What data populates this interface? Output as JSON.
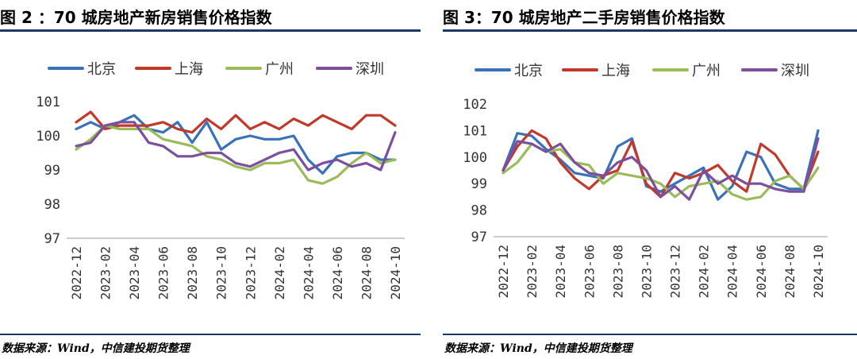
{
  "figures": [
    {
      "id": "left",
      "title": "图 2 ：70 城房地产新房销售价格指数",
      "source": "数据来源：Wind，中信建投期货整理"
    },
    {
      "id": "right",
      "title": "图 3：70 城房地产二手房销售价格指数",
      "source": "数据来源：Wind，中信建投期货整理"
    }
  ],
  "chart_data": [
    {
      "type": "line",
      "title": "70 城房地产新房销售价格指数",
      "x_tick_labels": [
        "2022-12",
        "2023-02",
        "2023-04",
        "2023-06",
        "2023-08",
        "2023-10",
        "2023-12",
        "2024-02",
        "2024-04",
        "2024-06",
        "2024-08",
        "2024-10"
      ],
      "x": [
        "2022-12",
        "2023-01",
        "2023-02",
        "2023-03",
        "2023-04",
        "2023-05",
        "2023-06",
        "2023-07",
        "2023-08",
        "2023-09",
        "2023-10",
        "2023-11",
        "2023-12",
        "2024-01",
        "2024-02",
        "2024-03",
        "2024-04",
        "2024-05",
        "2024-06",
        "2024-07",
        "2024-08",
        "2024-09",
        "2024-10"
      ],
      "ylim": [
        97,
        101
      ],
      "y_ticks": [
        97,
        98,
        99,
        100,
        101
      ],
      "grid": false,
      "legend": "top",
      "series": [
        {
          "name": "北京",
          "color": "#3a72b8",
          "values": [
            100.2,
            100.4,
            100.2,
            100.4,
            100.6,
            100.2,
            100.1,
            100.4,
            99.8,
            100.4,
            99.6,
            99.9,
            100.0,
            99.9,
            99.9,
            100.0,
            99.3,
            98.9,
            99.4,
            99.5,
            99.5,
            99.3,
            99.3
          ]
        },
        {
          "name": "上海",
          "color": "#c0392b",
          "values": [
            100.4,
            100.7,
            100.2,
            100.3,
            100.3,
            100.3,
            100.4,
            100.2,
            100.1,
            100.5,
            100.2,
            100.6,
            100.2,
            100.4,
            100.2,
            100.5,
            100.3,
            100.6,
            100.4,
            100.2,
            100.6,
            100.6,
            100.3
          ]
        },
        {
          "name": "广州",
          "color": "#9bbb59",
          "values": [
            99.6,
            99.9,
            100.3,
            100.2,
            100.2,
            100.2,
            99.9,
            99.8,
            99.7,
            99.4,
            99.3,
            99.1,
            99.0,
            99.2,
            99.2,
            99.3,
            98.7,
            98.6,
            98.8,
            99.2,
            99.5,
            99.2,
            99.3
          ]
        },
        {
          "name": "深圳",
          "color": "#7b4f9d",
          "values": [
            99.7,
            99.8,
            100.3,
            100.4,
            100.4,
            99.8,
            99.7,
            99.4,
            99.4,
            99.5,
            99.5,
            99.2,
            99.1,
            99.3,
            99.5,
            99.6,
            99.0,
            99.2,
            99.3,
            99.1,
            99.2,
            99.0,
            100.1
          ]
        }
      ]
    },
    {
      "type": "line",
      "title": "70 城房地产二手房销售价格指数",
      "x_tick_labels": [
        "2022-12",
        "2023-02",
        "2023-04",
        "2023-06",
        "2023-08",
        "2023-10",
        "2023-12",
        "2024-02",
        "2024-04",
        "2024-06",
        "2024-08",
        "2024-10"
      ],
      "x": [
        "2022-12",
        "2023-01",
        "2023-02",
        "2023-03",
        "2023-04",
        "2023-05",
        "2023-06",
        "2023-07",
        "2023-08",
        "2023-09",
        "2023-10",
        "2023-11",
        "2023-12",
        "2024-01",
        "2024-02",
        "2024-03",
        "2024-04",
        "2024-05",
        "2024-06",
        "2024-07",
        "2024-08",
        "2024-09",
        "2024-10"
      ],
      "ylim": [
        97,
        102
      ],
      "y_ticks": [
        97,
        98,
        99,
        100,
        101,
        102
      ],
      "grid": false,
      "legend": "top",
      "series": [
        {
          "name": "北京",
          "color": "#3a72b8",
          "values": [
            99.5,
            100.9,
            100.8,
            100.3,
            99.9,
            99.4,
            99.3,
            99.2,
            100.4,
            100.7,
            98.9,
            98.7,
            99.0,
            99.3,
            99.6,
            98.4,
            98.9,
            100.2,
            100.0,
            99.0,
            98.8,
            98.8,
            101.0
          ]
        },
        {
          "name": "上海",
          "color": "#c0392b",
          "values": [
            99.5,
            100.4,
            101.0,
            100.7,
            99.8,
            99.2,
            98.8,
            99.3,
            99.5,
            100.6,
            99.0,
            98.5,
            99.4,
            99.2,
            99.4,
            99.7,
            99.1,
            98.7,
            100.5,
            100.1,
            99.3,
            98.8,
            100.2
          ]
        },
        {
          "name": "广州",
          "color": "#9bbb59",
          "values": [
            99.4,
            99.8,
            100.5,
            100.2,
            100.3,
            99.8,
            99.7,
            99.0,
            99.4,
            99.3,
            99.2,
            99.0,
            98.5,
            98.9,
            99.0,
            99.1,
            98.6,
            98.4,
            98.5,
            99.1,
            99.3,
            98.8,
            99.6
          ]
        },
        {
          "name": "深圳",
          "color": "#7b4f9d",
          "values": [
            99.5,
            100.6,
            100.5,
            100.2,
            100.5,
            99.8,
            99.4,
            99.3,
            99.8,
            100.0,
            99.5,
            98.5,
            98.9,
            98.4,
            99.5,
            99.0,
            99.3,
            99.0,
            99.0,
            98.8,
            98.7,
            98.7,
            100.7
          ]
        }
      ]
    }
  ]
}
